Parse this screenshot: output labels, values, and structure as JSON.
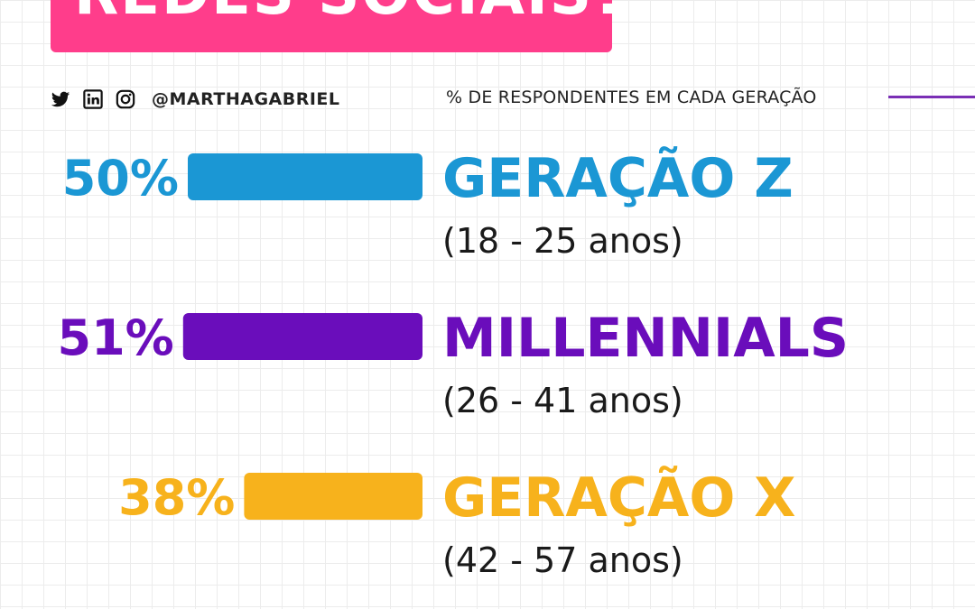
{
  "title": "REDES SOCIAIS?",
  "social": {
    "icons": [
      "twitter-icon",
      "linkedin-icon",
      "instagram-icon"
    ],
    "handle": "@MARTHAGABRIEL"
  },
  "colors": {
    "banner": "#ff3d8b",
    "accent_rule": "#7a2fb5",
    "gen_z": "#1b97d4",
    "millennials": "#6a0dbb",
    "gen_x": "#f7b21c"
  },
  "chart_data": {
    "type": "bar",
    "orientation": "horizontal",
    "subtitle": "% DE RESPONDENTES EM CADA GERAÇÃO",
    "unit": "%",
    "grid": true,
    "categories": [
      "GERAÇÃO Z",
      "MILLENNIALS",
      "GERAÇÃO X"
    ],
    "age_ranges": [
      "(18 - 25 anos)",
      "(26 - 41 anos)",
      "(42 - 57 anos)"
    ],
    "values": [
      50,
      51,
      38
    ],
    "value_labels": [
      "50%",
      "51%",
      "38%"
    ],
    "colors": [
      "#1b97d4",
      "#6a0dbb",
      "#f7b21c"
    ]
  }
}
